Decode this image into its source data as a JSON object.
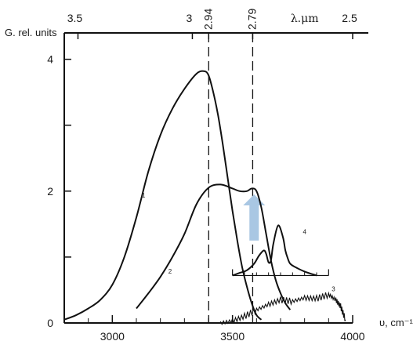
{
  "chart_data": {
    "type": "line",
    "title": "",
    "xlabel": "υ, cm⁻¹",
    "ylabel": "G. rel. units",
    "secondary_xlabel": "λ.μm",
    "xlim": [
      2800,
      4000
    ],
    "ylim": [
      0,
      4.4
    ],
    "x_ticks": [
      3000,
      3500,
      4000
    ],
    "y_ticks": [
      0,
      2,
      4
    ],
    "top_ticks": [
      {
        "label": "3.5",
        "x": 2857
      },
      {
        "label": "3",
        "x": 3333
      },
      {
        "label": "2.94",
        "x": 3401
      },
      {
        "label": "2.79",
        "x": 3584
      },
      {
        "label": "2.5",
        "x": 4000
      }
    ],
    "reference_lines": [
      {
        "x": 3401,
        "style": "dashed",
        "label": "2.94"
      },
      {
        "x": 3584,
        "style": "dashed",
        "label": "2.79"
      }
    ],
    "arrow": {
      "x": 3590,
      "y_from": 1.25,
      "y_to": 1.95,
      "color": "#a9c7e3"
    },
    "inset_baseline": {
      "x": [
        3500,
        3900
      ],
      "y": 0.72
    },
    "grid": false,
    "series": [
      {
        "name": "1",
        "x": [
          2800,
          2850,
          2900,
          2950,
          3000,
          3050,
          3100,
          3150,
          3200,
          3250,
          3300,
          3350,
          3380,
          3400,
          3420,
          3440,
          3460,
          3480,
          3500,
          3520,
          3540,
          3560,
          3580,
          3600,
          3620
        ],
        "y": [
          0.05,
          0.12,
          0.22,
          0.35,
          0.58,
          1.0,
          1.6,
          2.3,
          2.85,
          3.25,
          3.55,
          3.78,
          3.82,
          3.76,
          3.5,
          3.15,
          2.7,
          2.2,
          1.7,
          1.25,
          0.85,
          0.55,
          0.3,
          0.12,
          0.05
        ]
      },
      {
        "name": "2",
        "x": [
          3100,
          3150,
          3200,
          3250,
          3300,
          3350,
          3400,
          3450,
          3500,
          3530,
          3560,
          3580,
          3600,
          3620,
          3640,
          3660,
          3680,
          3700,
          3720,
          3740
        ],
        "y": [
          0.22,
          0.45,
          0.7,
          1.0,
          1.35,
          1.8,
          2.05,
          2.1,
          2.04,
          2.0,
          2.0,
          2.04,
          2.0,
          1.75,
          1.35,
          0.95,
          0.65,
          0.45,
          0.3,
          0.2
        ]
      },
      {
        "name": "3",
        "x": [
          3450,
          3500,
          3550,
          3600,
          3650,
          3700,
          3750,
          3800,
          3850,
          3900,
          3930,
          3950,
          3970
        ],
        "y": [
          0.0,
          0.03,
          0.1,
          0.2,
          0.28,
          0.35,
          0.33,
          0.38,
          0.37,
          0.43,
          0.35,
          0.25,
          0.05
        ]
      },
      {
        "name": "4",
        "x": [
          3500,
          3530,
          3560,
          3590,
          3610,
          3630,
          3640,
          3650,
          3660,
          3670,
          3690,
          3710,
          3720,
          3730,
          3740,
          3760,
          3800,
          3850
        ],
        "y": [
          0.72,
          0.76,
          0.8,
          0.9,
          1.02,
          1.1,
          1.05,
          0.92,
          0.95,
          1.2,
          1.48,
          1.3,
          1.1,
          0.98,
          0.9,
          0.85,
          0.78,
          0.72
        ]
      }
    ]
  }
}
